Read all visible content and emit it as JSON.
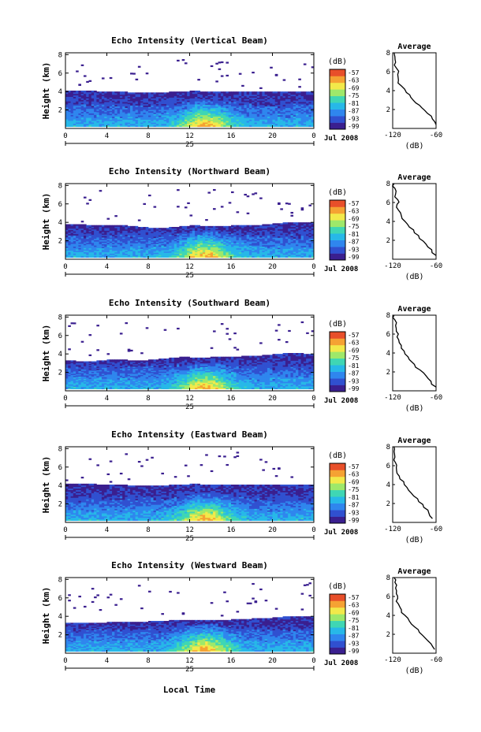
{
  "figure": {
    "x_axis_label": "Local Time",
    "date_label": "Jul 2008",
    "day_label": "25",
    "cbar_unit": "(dB)",
    "avg_title": "Average",
    "avg_xlabel": "(dB)"
  },
  "chart_data": [
    {
      "type": "heatmap",
      "title": "Echo Intensity (Vertical Beam)",
      "ylabel": "Height (km)",
      "xlabel": "Local Time",
      "x_ticks": [
        "0",
        "4",
        "8",
        "12",
        "16",
        "20",
        "0"
      ],
      "y_ticks": [
        "2",
        "4",
        "6",
        "8"
      ],
      "ylim": [
        0,
        8.2
      ],
      "xlim": [
        0,
        24
      ],
      "cbar_ticks": [
        "-57",
        "-63",
        "-69",
        "-75",
        "-81",
        "-87",
        "-93",
        "-99"
      ],
      "colormap": [
        "#3a1f8f",
        "#3050d0",
        "#2f86ee",
        "#27b8e8",
        "#3fd6b4",
        "#9ee86a",
        "#f2e94a",
        "#f5a233",
        "#e84f2a"
      ],
      "cloud_top_km": [
        4.1,
        4.1,
        4.1,
        4.0,
        4.0,
        4.0,
        3.9,
        3.9,
        3.9,
        3.9,
        4.0,
        4.0,
        4.1,
        4.0,
        4.0,
        4.0,
        4.0,
        4.0,
        4.0,
        4.0,
        4.0,
        4.0,
        4.0,
        4.0
      ],
      "avg_profile": {
        "title": "Average",
        "xlabel": "(dB)",
        "xlim": [
          -120,
          -60
        ],
        "x_ticks": [
          "-120",
          "-60"
        ],
        "ylim": [
          0,
          8
        ],
        "y_ticks": [
          "2",
          "4",
          "6",
          "8"
        ],
        "x": [
          -60,
          -65,
          -72,
          -80,
          -88,
          -95,
          -101,
          -108,
          -112,
          -113,
          -115,
          -116,
          -117,
          -118
        ],
        "y": [
          0.4,
          1.0,
          1.6,
          2.2,
          2.7,
          3.3,
          3.8,
          4.5,
          5.1,
          5.7,
          6.4,
          7.0,
          7.6,
          8.0
        ]
      }
    },
    {
      "type": "heatmap",
      "title": "Echo Intensity (Northward Beam)",
      "ylabel": "Height (km)",
      "xlabel": "Local Time",
      "x_ticks": [
        "0",
        "4",
        "8",
        "12",
        "16",
        "20",
        "0"
      ],
      "y_ticks": [
        "2",
        "4",
        "6",
        "8"
      ],
      "ylim": [
        0,
        8.2
      ],
      "xlim": [
        0,
        24
      ],
      "cbar_ticks": [
        "-57",
        "-63",
        "-69",
        "-75",
        "-81",
        "-87",
        "-93",
        "-99"
      ],
      "colormap": [
        "#3a1f8f",
        "#3050d0",
        "#2f86ee",
        "#27b8e8",
        "#3fd6b4",
        "#9ee86a",
        "#f2e94a",
        "#f5a233",
        "#e84f2a"
      ],
      "cloud_top_km": [
        3.8,
        3.8,
        3.7,
        3.7,
        3.7,
        3.7,
        3.6,
        3.5,
        3.4,
        3.4,
        3.5,
        3.6,
        3.7,
        3.6,
        3.6,
        3.6,
        3.7,
        3.7,
        3.7,
        3.8,
        3.9,
        4.0,
        4.0,
        4.0
      ],
      "avg_profile": {
        "title": "Average",
        "xlabel": "(dB)",
        "xlim": [
          -120,
          -60
        ],
        "x_ticks": [
          "-120",
          "-60"
        ],
        "ylim": [
          0,
          8
        ],
        "y_ticks": [
          "2",
          "4",
          "6",
          "8"
        ],
        "x": [
          -60,
          -66,
          -74,
          -83,
          -90,
          -97,
          -103,
          -108,
          -112,
          -114,
          -113,
          -116,
          -117,
          -118
        ],
        "y": [
          0.4,
          1.0,
          1.6,
          2.2,
          2.8,
          3.4,
          4.0,
          4.6,
          5.2,
          5.8,
          6.3,
          6.9,
          7.5,
          8.0
        ]
      }
    },
    {
      "type": "heatmap",
      "title": "Echo Intensity (Southward Beam)",
      "ylabel": "Height (km)",
      "xlabel": "Local Time",
      "x_ticks": [
        "0",
        "4",
        "8",
        "12",
        "16",
        "20",
        "0"
      ],
      "y_ticks": [
        "2",
        "4",
        "6",
        "8"
      ],
      "ylim": [
        0,
        8.2
      ],
      "xlim": [
        0,
        24
      ],
      "cbar_ticks": [
        "-57",
        "-63",
        "-69",
        "-75",
        "-81",
        "-87",
        "-93",
        "-99"
      ],
      "colormap": [
        "#3a1f8f",
        "#3050d0",
        "#2f86ee",
        "#27b8e8",
        "#3fd6b4",
        "#9ee86a",
        "#f2e94a",
        "#f5a233",
        "#e84f2a"
      ],
      "cloud_top_km": [
        3.3,
        3.2,
        3.2,
        3.3,
        3.4,
        3.4,
        3.3,
        3.3,
        3.4,
        3.5,
        3.6,
        3.7,
        3.6,
        3.6,
        3.7,
        3.7,
        3.7,
        3.8,
        3.8,
        3.9,
        4.0,
        4.1,
        4.1,
        4.0
      ],
      "avg_profile": {
        "title": "Average",
        "xlabel": "(dB)",
        "xlim": [
          -120,
          -60
        ],
        "x_ticks": [
          "-120",
          "-60"
        ],
        "ylim": [
          0,
          8
        ],
        "y_ticks": [
          "2",
          "4",
          "6",
          "8"
        ],
        "x": [
          -60,
          -67,
          -74,
          -82,
          -90,
          -97,
          -103,
          -108,
          -111,
          -114,
          -115,
          -116,
          -117,
          -118
        ],
        "y": [
          0.4,
          1.0,
          1.6,
          2.2,
          2.8,
          3.3,
          3.9,
          4.5,
          5.1,
          5.7,
          6.3,
          6.9,
          7.5,
          8.0
        ]
      }
    },
    {
      "type": "heatmap",
      "title": "Echo Intensity (Eastward Beam)",
      "ylabel": "Height (km)",
      "xlabel": "Local Time",
      "x_ticks": [
        "0",
        "4",
        "8",
        "12",
        "16",
        "20",
        "0"
      ],
      "y_ticks": [
        "2",
        "4",
        "6",
        "8"
      ],
      "ylim": [
        0,
        8.2
      ],
      "xlim": [
        0,
        24
      ],
      "cbar_ticks": [
        "-57",
        "-63",
        "-69",
        "-75",
        "-81",
        "-87",
        "-93",
        "-99"
      ],
      "colormap": [
        "#3a1f8f",
        "#3050d0",
        "#2f86ee",
        "#27b8e8",
        "#3fd6b4",
        "#9ee86a",
        "#f2e94a",
        "#f5a233",
        "#e84f2a"
      ],
      "cloud_top_km": [
        4.2,
        4.2,
        4.2,
        4.1,
        4.1,
        4.1,
        4.0,
        4.0,
        4.0,
        4.0,
        4.1,
        4.1,
        4.2,
        4.1,
        4.1,
        4.1,
        4.1,
        4.1,
        4.1,
        4.1,
        4.1,
        4.1,
        4.1,
        4.1
      ],
      "avg_profile": {
        "title": "Average",
        "xlabel": "(dB)",
        "xlim": [
          -120,
          -60
        ],
        "x_ticks": [
          "-120",
          "-60"
        ],
        "ylim": [
          0,
          8
        ],
        "y_ticks": [
          "2",
          "4",
          "6",
          "8"
        ],
        "x": [
          -65,
          -70,
          -77,
          -84,
          -91,
          -98,
          -104,
          -110,
          -114,
          -115,
          -116,
          -117,
          -118,
          -118
        ],
        "y": [
          0.4,
          1.0,
          1.6,
          2.2,
          2.8,
          3.4,
          4.0,
          4.6,
          5.2,
          5.8,
          6.3,
          6.9,
          7.5,
          8.0
        ]
      }
    },
    {
      "type": "heatmap",
      "title": "Echo Intensity (Westward Beam)",
      "ylabel": "Height (km)",
      "xlabel": "Local Time",
      "x_ticks": [
        "0",
        "4",
        "8",
        "12",
        "16",
        "20",
        "0"
      ],
      "y_ticks": [
        "2",
        "4",
        "6",
        "8"
      ],
      "ylim": [
        0,
        8.2
      ],
      "xlim": [
        0,
        24
      ],
      "cbar_ticks": [
        "-57",
        "-63",
        "-69",
        "-75",
        "-81",
        "-87",
        "-93",
        "-99"
      ],
      "colormap": [
        "#3a1f8f",
        "#3050d0",
        "#2f86ee",
        "#27b8e8",
        "#3fd6b4",
        "#9ee86a",
        "#f2e94a",
        "#f5a233",
        "#e84f2a"
      ],
      "cloud_top_km": [
        3.3,
        3.3,
        3.3,
        3.3,
        3.4,
        3.4,
        3.4,
        3.4,
        3.5,
        3.5,
        3.6,
        3.6,
        3.6,
        3.6,
        3.6,
        3.6,
        3.7,
        3.7,
        3.8,
        3.8,
        3.9,
        4.0,
        4.0,
        4.0
      ],
      "avg_profile": {
        "title": "Average",
        "xlabel": "(dB)",
        "xlim": [
          -120,
          -60
        ],
        "x_ticks": [
          "-120",
          "-60"
        ],
        "ylim": [
          0,
          8
        ],
        "y_ticks": [
          "2",
          "4",
          "6",
          "8"
        ],
        "x": [
          -62,
          -67,
          -75,
          -83,
          -90,
          -97,
          -103,
          -108,
          -112,
          -113,
          -115,
          -116,
          -117,
          -118
        ],
        "y": [
          0.4,
          1.0,
          1.6,
          2.2,
          2.8,
          3.4,
          4.0,
          4.6,
          5.2,
          5.8,
          6.3,
          6.9,
          7.5,
          8.0
        ]
      }
    }
  ]
}
